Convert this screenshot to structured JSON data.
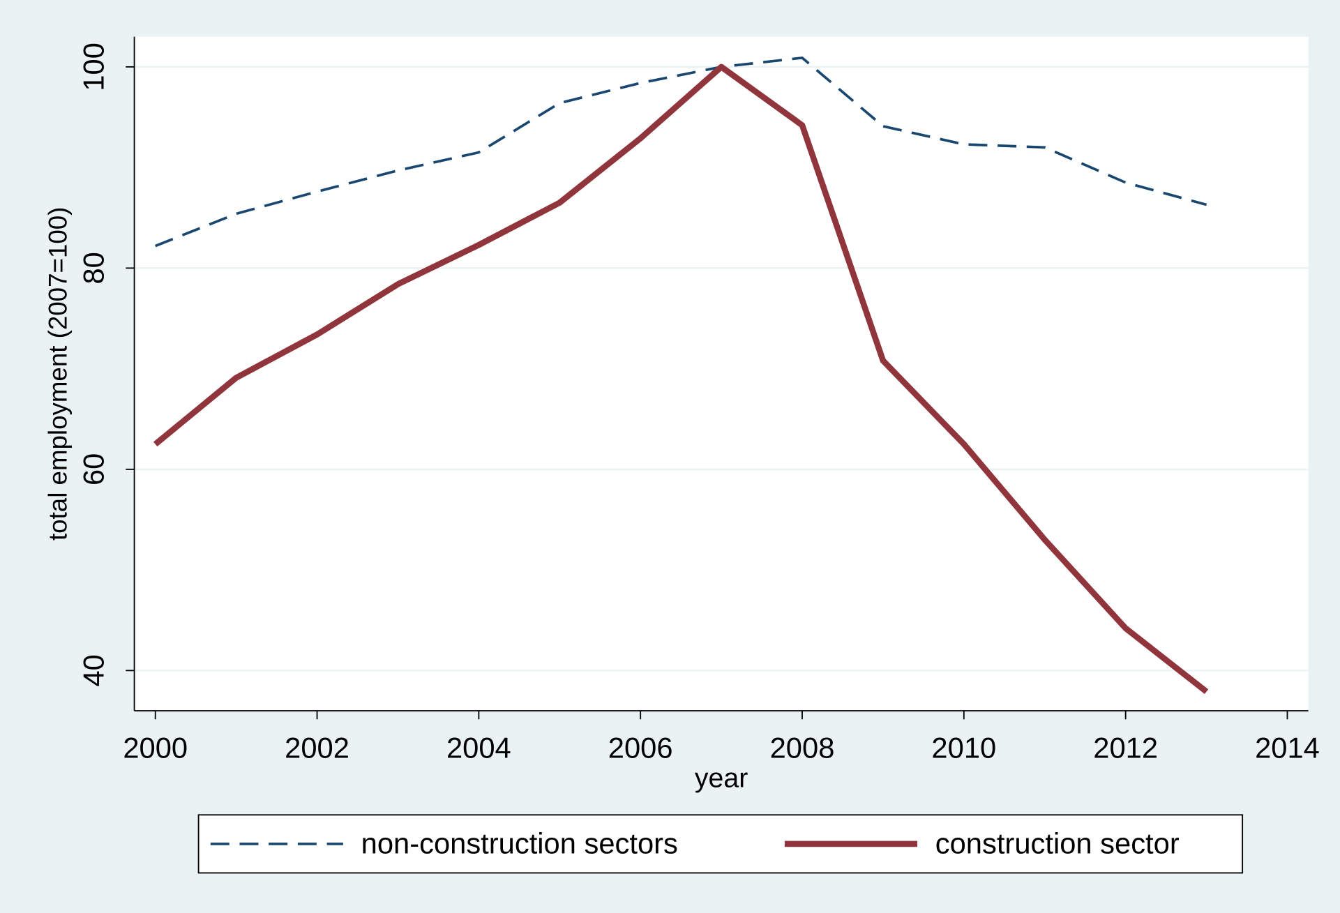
{
  "chart_data": {
    "type": "line",
    "x_label": "year",
    "y_label": "total employment (2007=100)",
    "x": [
      2000,
      2001,
      2002,
      2003,
      2004,
      2005,
      2006,
      2007,
      2008,
      2009,
      2010,
      2011,
      2012,
      2013
    ],
    "series": [
      {
        "name": "non-construction sectors",
        "color": "#1a476f",
        "dash": true,
        "values": [
          82.2,
          85.4,
          87.6,
          89.7,
          91.5,
          96.4,
          98.4,
          100,
          100.9,
          94.1,
          92.3,
          92.0,
          88.5,
          86.3
        ]
      },
      {
        "name": "construction sector",
        "color": "#90353b",
        "dash": false,
        "values": [
          62.5,
          69.1,
          73.4,
          78.4,
          82.3,
          86.5,
          92.9,
          100,
          94.2,
          70.8,
          62.5,
          53.0,
          44.2,
          37.9
        ]
      }
    ],
    "xlim": [
      1999.74,
      2014.26
    ],
    "ylim": [
      36,
      103
    ],
    "xticks": [
      2000,
      2002,
      2004,
      2006,
      2008,
      2010,
      2012,
      2014
    ],
    "yticks": [
      40,
      60,
      80,
      100
    ],
    "grid": true
  }
}
